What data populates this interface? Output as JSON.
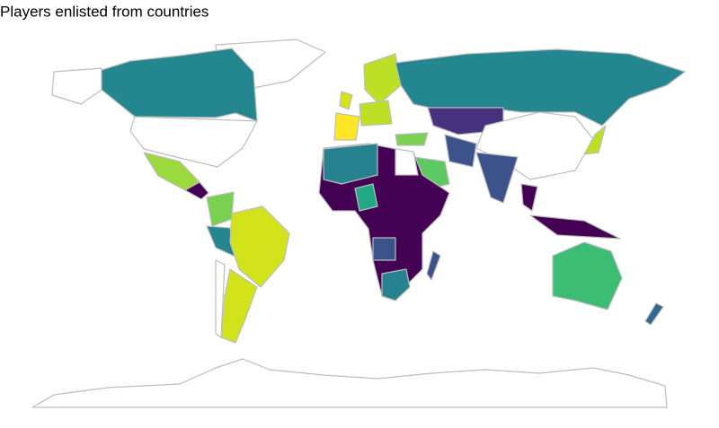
{
  "title": "Players enlisted from countries"
}
